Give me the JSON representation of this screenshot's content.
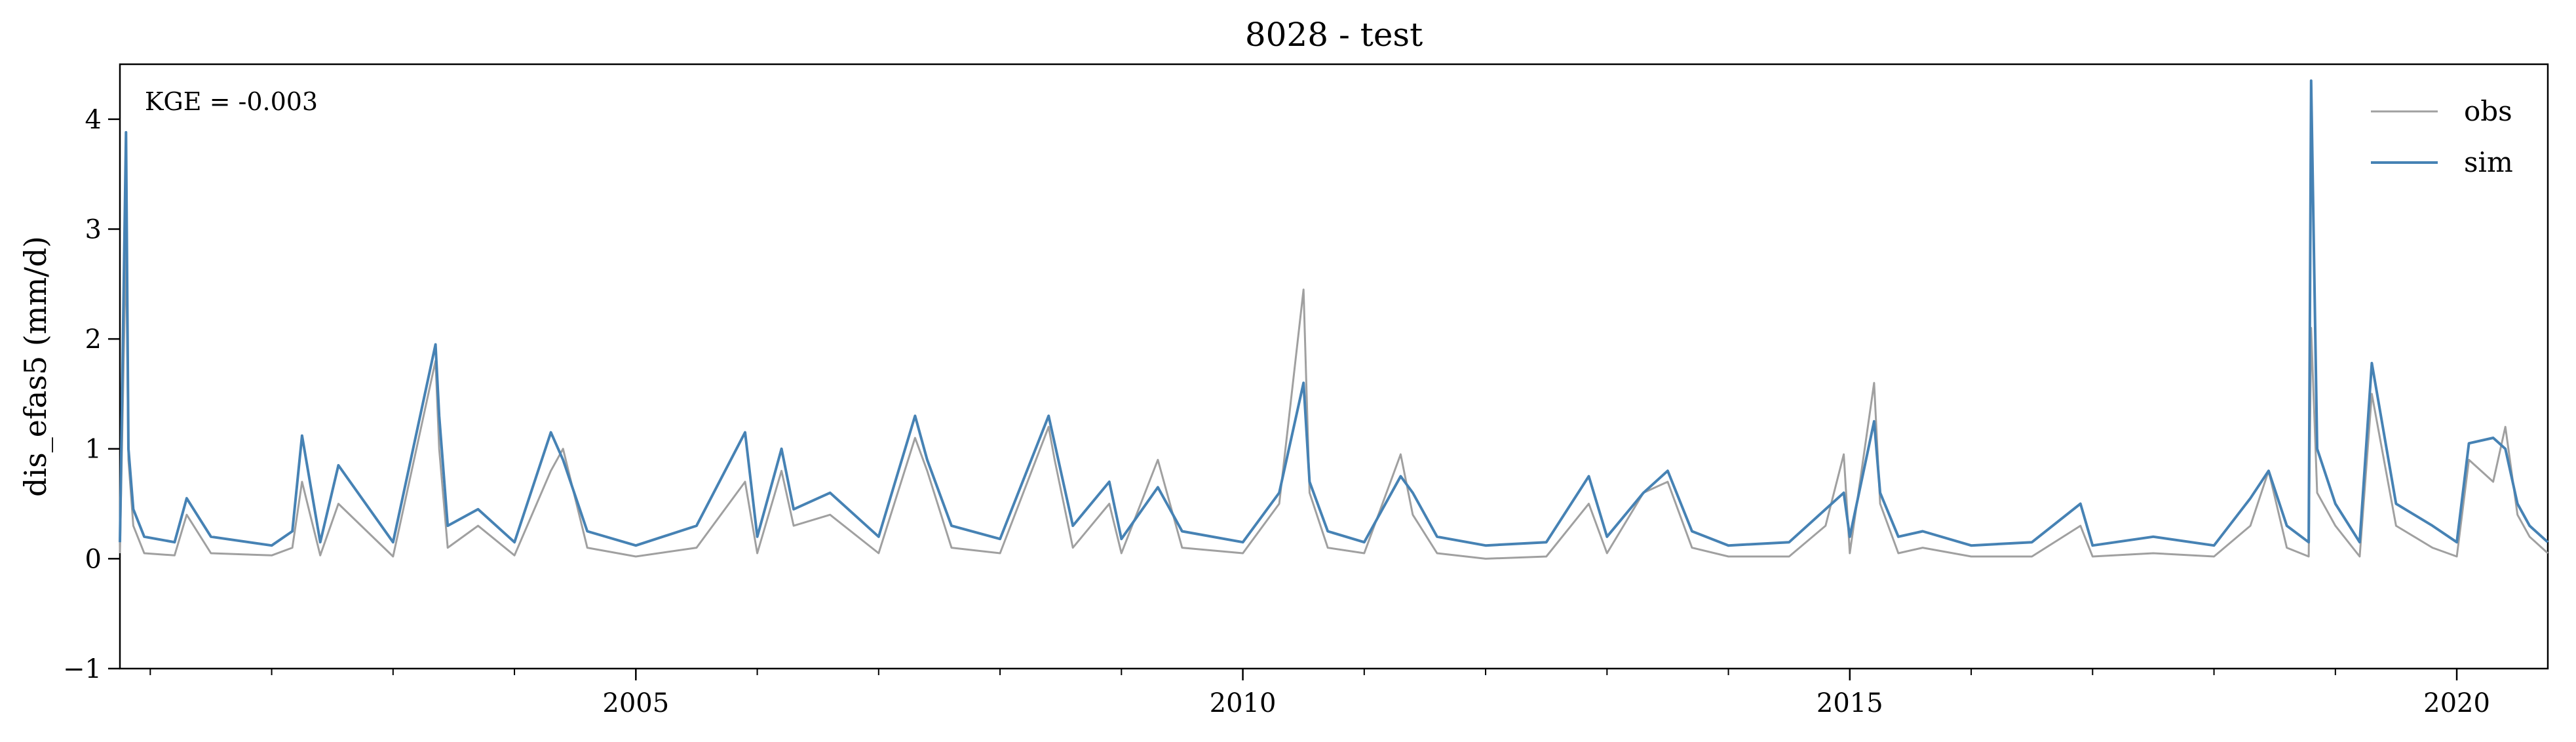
{
  "chart_data": {
    "type": "line",
    "title": "8028 - test",
    "xlabel": "",
    "ylabel": "dis_efas5 (mm/d)",
    "annotation": "KGE = -0.003",
    "xlim": [
      2000.75,
      2020.75
    ],
    "ylim": [
      -1,
      4.5
    ],
    "x_major_ticks": [
      2005,
      2010,
      2015,
      2020
    ],
    "x_tick_labels": [
      "2005",
      "2010",
      "2015",
      "2020"
    ],
    "x_minor_ticks": [
      2001,
      2002,
      2003,
      2004,
      2006,
      2007,
      2008,
      2009,
      2011,
      2012,
      2013,
      2014,
      2016,
      2017,
      2018,
      2019
    ],
    "y_ticks": [
      -1,
      0,
      1,
      2,
      3,
      4
    ],
    "y_tick_labels": [
      "−1",
      "0",
      "1",
      "2",
      "3",
      "4"
    ],
    "grid": false,
    "legend_position": "top-right",
    "series": [
      {
        "name": "obs",
        "color": "#a0a0a0",
        "x": [
          2000.75,
          2000.8,
          2000.82,
          2000.86,
          2000.95,
          2001.2,
          2001.3,
          2001.5,
          2002.0,
          2002.17,
          2002.25,
          2002.4,
          2002.55,
          2003.0,
          2003.35,
          2003.38,
          2003.45,
          2003.7,
          2004.0,
          2004.3,
          2004.4,
          2004.6,
          2005.0,
          2005.5,
          2005.9,
          2006.0,
          2006.2,
          2006.3,
          2006.6,
          2007.0,
          2007.3,
          2007.4,
          2007.6,
          2008.0,
          2008.4,
          2008.45,
          2008.6,
          2008.9,
          2009.0,
          2009.3,
          2009.5,
          2010.0,
          2010.3,
          2010.5,
          2010.55,
          2010.7,
          2011.0,
          2011.3,
          2011.4,
          2011.6,
          2012.0,
          2012.5,
          2012.85,
          2013.0,
          2013.3,
          2013.5,
          2013.7,
          2014.0,
          2014.5,
          2014.8,
          2014.95,
          2015.0,
          2015.2,
          2015.25,
          2015.4,
          2015.6,
          2016.0,
          2016.5,
          2016.9,
          2017.0,
          2017.5,
          2018.0,
          2018.3,
          2018.45,
          2018.6,
          2018.78,
          2018.8,
          2018.85,
          2019.0,
          2019.2,
          2019.3,
          2019.5,
          2019.8,
          2020.0,
          2020.1,
          2020.3,
          2020.4,
          2020.5,
          2020.6,
          2020.75
        ],
        "y": [
          0.05,
          2.9,
          0.9,
          0.3,
          0.05,
          0.03,
          0.4,
          0.05,
          0.03,
          0.1,
          0.7,
          0.03,
          0.5,
          0.02,
          1.8,
          1.0,
          0.1,
          0.3,
          0.03,
          0.8,
          1.0,
          0.1,
          0.02,
          0.1,
          0.7,
          0.05,
          0.8,
          0.3,
          0.4,
          0.05,
          1.1,
          0.8,
          0.1,
          0.05,
          1.2,
          0.9,
          0.1,
          0.5,
          0.05,
          0.9,
          0.1,
          0.05,
          0.5,
          2.45,
          0.6,
          0.1,
          0.05,
          0.95,
          0.4,
          0.05,
          0.0,
          0.02,
          0.5,
          0.05,
          0.6,
          0.7,
          0.1,
          0.02,
          0.02,
          0.3,
          0.95,
          0.05,
          1.6,
          0.5,
          0.05,
          0.1,
          0.02,
          0.02,
          0.3,
          0.02,
          0.05,
          0.02,
          0.3,
          0.8,
          0.1,
          0.02,
          2.1,
          0.6,
          0.3,
          0.02,
          1.5,
          0.3,
          0.1,
          0.02,
          0.9,
          0.7,
          1.2,
          0.4,
          0.2,
          0.05
        ]
      },
      {
        "name": "sim",
        "color": "#4682b4",
        "x": [
          2000.75,
          2000.8,
          2000.82,
          2000.86,
          2000.95,
          2001.2,
          2001.3,
          2001.5,
          2002.0,
          2002.17,
          2002.25,
          2002.4,
          2002.55,
          2003.0,
          2003.35,
          2003.38,
          2003.45,
          2003.7,
          2004.0,
          2004.3,
          2004.4,
          2004.6,
          2005.0,
          2005.5,
          2005.9,
          2006.0,
          2006.2,
          2006.3,
          2006.6,
          2007.0,
          2007.3,
          2007.4,
          2007.6,
          2008.0,
          2008.4,
          2008.45,
          2008.6,
          2008.9,
          2009.0,
          2009.3,
          2009.5,
          2010.0,
          2010.3,
          2010.5,
          2010.55,
          2010.7,
          2011.0,
          2011.3,
          2011.4,
          2011.6,
          2012.0,
          2012.5,
          2012.85,
          2013.0,
          2013.3,
          2013.5,
          2013.7,
          2014.0,
          2014.5,
          2014.8,
          2014.95,
          2015.0,
          2015.2,
          2015.25,
          2015.4,
          2015.6,
          2016.0,
          2016.5,
          2016.9,
          2017.0,
          2017.5,
          2018.0,
          2018.3,
          2018.45,
          2018.6,
          2018.78,
          2018.8,
          2018.85,
          2019.0,
          2019.2,
          2019.3,
          2019.5,
          2019.8,
          2020.0,
          2020.1,
          2020.3,
          2020.4,
          2020.5,
          2020.6,
          2020.75
        ],
        "y": [
          0.15,
          3.88,
          1.0,
          0.45,
          0.2,
          0.15,
          0.55,
          0.2,
          0.12,
          0.25,
          1.12,
          0.15,
          0.85,
          0.15,
          1.95,
          1.3,
          0.3,
          0.45,
          0.15,
          1.15,
          0.9,
          0.25,
          0.12,
          0.3,
          1.15,
          0.2,
          1.0,
          0.45,
          0.6,
          0.2,
          1.3,
          0.9,
          0.3,
          0.18,
          1.3,
          1.05,
          0.3,
          0.7,
          0.18,
          0.65,
          0.25,
          0.15,
          0.6,
          1.6,
          0.7,
          0.25,
          0.15,
          0.75,
          0.6,
          0.2,
          0.12,
          0.15,
          0.75,
          0.2,
          0.6,
          0.8,
          0.25,
          0.12,
          0.15,
          0.45,
          0.6,
          0.2,
          1.25,
          0.6,
          0.2,
          0.25,
          0.12,
          0.15,
          0.5,
          0.12,
          0.2,
          0.12,
          0.55,
          0.8,
          0.3,
          0.15,
          4.35,
          1.0,
          0.5,
          0.15,
          1.78,
          0.5,
          0.3,
          0.15,
          1.05,
          1.1,
          1.0,
          0.5,
          0.3,
          0.15
        ]
      }
    ]
  }
}
